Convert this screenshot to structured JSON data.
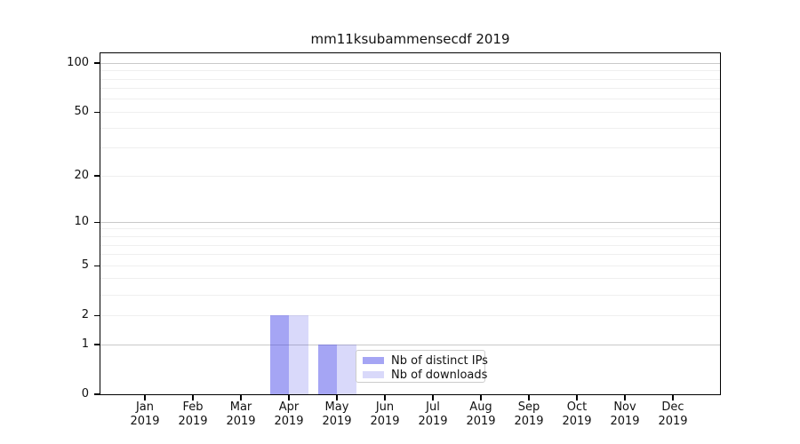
{
  "figure": {
    "title": "mm11ksubammensecdf 2019",
    "background_color": "#ffffff"
  },
  "chart_data": {
    "type": "bar",
    "title": "mm11ksubammensecdf 2019",
    "categories": [
      "Jan",
      "Feb",
      "Mar",
      "Apr",
      "May",
      "Jun",
      "Jul",
      "Aug",
      "Sep",
      "Oct",
      "Nov",
      "Dec"
    ],
    "year_label": "2019",
    "series": [
      {
        "name": "Nb of distinct IPs",
        "key": "distinct-ips",
        "fill": "rgba(64,64,232,0.47)",
        "values": [
          0,
          0,
          0,
          2,
          1,
          0,
          0,
          0,
          0,
          0,
          0,
          0
        ]
      },
      {
        "name": "Nb of downloads",
        "key": "downloads",
        "fill": "rgba(64,64,232,0.20)",
        "values": [
          0,
          0,
          0,
          2,
          1,
          0,
          0,
          0,
          0,
          0,
          0,
          0
        ]
      }
    ],
    "y_scale": "log1p",
    "ylim": [
      0,
      115
    ],
    "y_ticks": [
      0,
      1,
      2,
      5,
      10,
      20,
      50,
      100
    ],
    "y_minor_ticks": [
      3,
      4,
      6,
      7,
      8,
      9,
      30,
      40,
      60,
      70,
      80,
      90
    ],
    "y_major_gridline_values": [
      1,
      10,
      100
    ],
    "grid": {
      "major_color": "#c9c9c9",
      "minor_color": "#efefef",
      "visible": true
    },
    "legend": {
      "position": "lower-center",
      "border_color": "#cccccc"
    },
    "axis_color": "#000000"
  }
}
